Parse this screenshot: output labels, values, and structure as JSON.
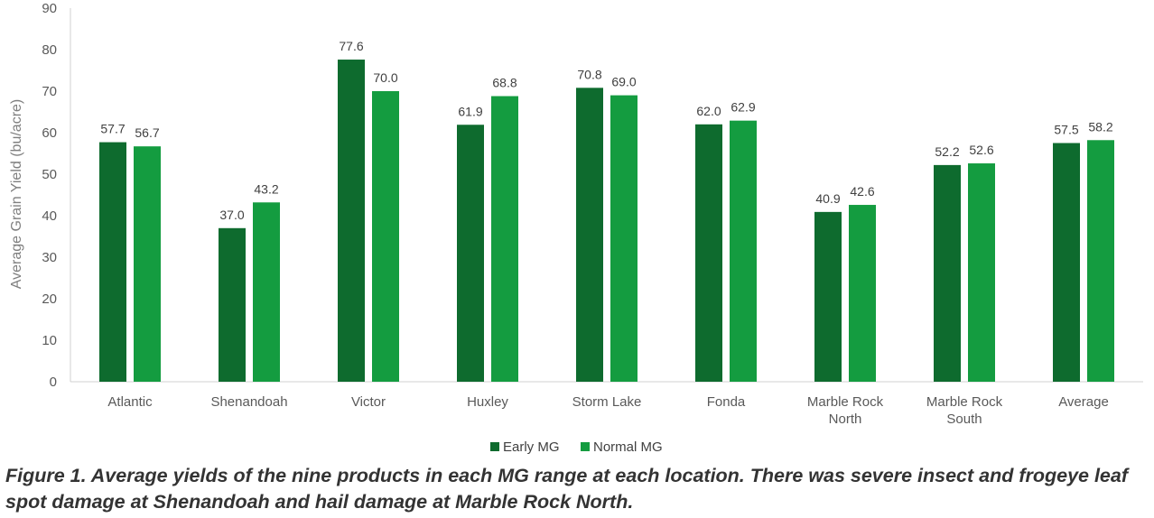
{
  "chart_data": {
    "type": "bar",
    "ylabel": "Average Grain Yield (bu/acre)",
    "xlabel": "",
    "ylim": [
      0,
      90
    ],
    "yticks": [
      0,
      10,
      20,
      30,
      40,
      50,
      60,
      70,
      80,
      90
    ],
    "grid": false,
    "legend_position": "bottom",
    "categories": [
      [
        "Atlantic"
      ],
      [
        "Shenandoah"
      ],
      [
        "Victor"
      ],
      [
        "Huxley"
      ],
      [
        "Storm Lake"
      ],
      [
        "Fonda"
      ],
      [
        "Marble Rock",
        "North"
      ],
      [
        "Marble Rock",
        "South"
      ],
      [
        "Average"
      ]
    ],
    "series": [
      {
        "name": "Early MG",
        "color": "#0e6b2e",
        "values": [
          57.7,
          37.0,
          77.6,
          61.9,
          70.8,
          62.0,
          40.9,
          52.2,
          57.5
        ],
        "labels": [
          "57.7",
          "37.0",
          "77.6",
          "61.9",
          "70.8",
          "62.0",
          "40.9",
          "52.2",
          "57.5"
        ]
      },
      {
        "name": "Normal MG",
        "color": "#149c40",
        "values": [
          56.7,
          43.2,
          70.0,
          68.8,
          69.0,
          62.9,
          42.6,
          52.6,
          58.2
        ],
        "labels": [
          "56.7",
          "43.2",
          "70.0",
          "68.8",
          "69.0",
          "62.9",
          "42.6",
          "52.6",
          "58.2"
        ]
      }
    ]
  },
  "caption": "Figure 1. Average yields of the nine products in each MG range at each location. There was severe insect and frogeye leaf spot damage at Shenandoah and hail damage at Marble Rock North."
}
